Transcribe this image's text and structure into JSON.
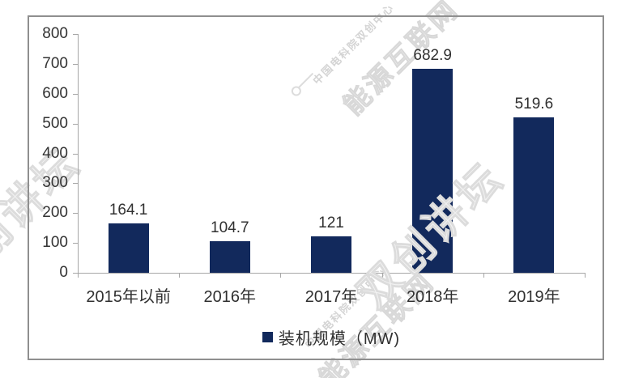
{
  "chart_data": {
    "type": "bar",
    "title": "",
    "xlabel": "",
    "ylabel": "",
    "categories": [
      "2015年以前",
      "2016年",
      "2017年",
      "2018年",
      "2019年"
    ],
    "values": [
      164.1,
      104.7,
      121,
      682.9,
      519.6
    ],
    "data_labels": [
      "164.1",
      "104.7",
      "121",
      "682.9",
      "519.6"
    ],
    "series_name": "装机规模（MW)",
    "legend": "装机规模（MW)",
    "legend_position": "bottom",
    "ylim": [
      0,
      800
    ],
    "ytick_step": 100,
    "yticks": [
      0,
      100,
      200,
      300,
      400,
      500,
      600,
      700,
      800
    ],
    "grid": false,
    "bar_color": "#12295C"
  },
  "colors": {
    "bar": "#12295C",
    "frame_border": "#8F8F8F",
    "axis": "#A6A6A6",
    "text": "#303030",
    "watermark": "#D8D8D8"
  },
  "watermarks": {
    "center_small": "中国电科院双创中心",
    "center_large": "能源互联网",
    "accent": "双创讲坛"
  }
}
